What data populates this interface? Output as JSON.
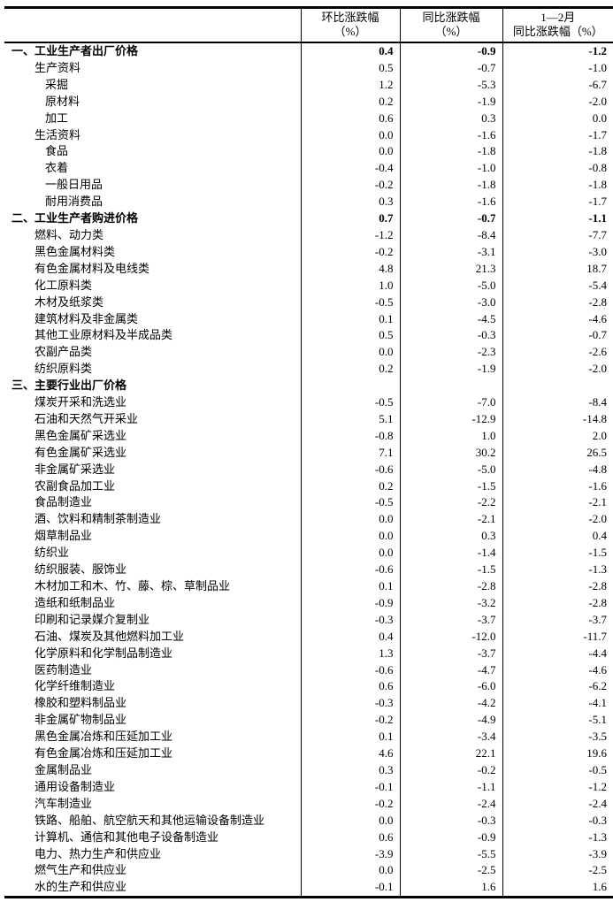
{
  "page": {
    "background_color": "#ffffff",
    "border_color": "#000000"
  },
  "table": {
    "header": {
      "label_col": "",
      "col_mom": {
        "line1": "环比涨跌幅",
        "line2": "（%）"
      },
      "col_yoy": {
        "line1": "同比涨跌幅",
        "line2": "（%）"
      },
      "col_ytd": {
        "line1": "1—2月",
        "line2": "同比涨跌幅（%）"
      }
    },
    "rows": [
      {
        "label": "一、工业生产者出厂价格",
        "indent": 0,
        "bold": true,
        "values": [
          "0.4",
          "-0.9",
          "-1.2"
        ]
      },
      {
        "label": "生产资料",
        "indent": 1,
        "bold": false,
        "values": [
          "0.5",
          "-0.7",
          "-1.0"
        ]
      },
      {
        "label": "采掘",
        "indent": 2,
        "bold": false,
        "values": [
          "1.2",
          "-5.3",
          "-6.7"
        ]
      },
      {
        "label": "原材料",
        "indent": 2,
        "bold": false,
        "values": [
          "0.2",
          "-1.9",
          "-2.0"
        ]
      },
      {
        "label": "加工",
        "indent": 2,
        "bold": false,
        "values": [
          "0.6",
          "0.3",
          "0.0"
        ]
      },
      {
        "label": "生活资料",
        "indent": 1,
        "bold": false,
        "values": [
          "0.0",
          "-1.6",
          "-1.7"
        ]
      },
      {
        "label": "食品",
        "indent": 2,
        "bold": false,
        "values": [
          "0.0",
          "-1.8",
          "-1.8"
        ]
      },
      {
        "label": "衣着",
        "indent": 2,
        "bold": false,
        "values": [
          "-0.4",
          "-1.0",
          "-0.8"
        ]
      },
      {
        "label": "一般日用品",
        "indent": 2,
        "bold": false,
        "values": [
          "-0.2",
          "-1.8",
          "-1.8"
        ]
      },
      {
        "label": "耐用消费品",
        "indent": 2,
        "bold": false,
        "values": [
          "0.3",
          "-1.6",
          "-1.7"
        ]
      },
      {
        "label": "二、工业生产者购进价格",
        "indent": 0,
        "bold": true,
        "values": [
          "0.7",
          "-0.7",
          "-1.1"
        ]
      },
      {
        "label": "燃料、动力类",
        "indent": 1,
        "bold": false,
        "values": [
          "-1.2",
          "-8.4",
          "-7.7"
        ]
      },
      {
        "label": "黑色金属材料类",
        "indent": 1,
        "bold": false,
        "values": [
          "-0.2",
          "-3.1",
          "-3.0"
        ]
      },
      {
        "label": "有色金属材料及电线类",
        "indent": 1,
        "bold": false,
        "values": [
          "4.8",
          "21.3",
          "18.7"
        ]
      },
      {
        "label": "化工原料类",
        "indent": 1,
        "bold": false,
        "values": [
          "1.0",
          "-5.0",
          "-5.4"
        ]
      },
      {
        "label": "木材及纸浆类",
        "indent": 1,
        "bold": false,
        "values": [
          "-0.5",
          "-3.0",
          "-2.8"
        ]
      },
      {
        "label": "建筑材料及非金属类",
        "indent": 1,
        "bold": false,
        "values": [
          "0.1",
          "-4.5",
          "-4.6"
        ]
      },
      {
        "label": "其他工业原材料及半成品类",
        "indent": 1,
        "bold": false,
        "values": [
          "0.5",
          "-0.3",
          "-0.7"
        ]
      },
      {
        "label": "农副产品类",
        "indent": 1,
        "bold": false,
        "values": [
          "0.0",
          "-2.3",
          "-2.6"
        ]
      },
      {
        "label": "纺织原料类",
        "indent": 1,
        "bold": false,
        "values": [
          "0.2",
          "-1.9",
          "-2.0"
        ]
      },
      {
        "label": "三、主要行业出厂价格",
        "indent": 0,
        "bold": true,
        "values": [
          "",
          "",
          ""
        ]
      },
      {
        "label": "煤炭开采和洗选业",
        "indent": 1,
        "bold": false,
        "values": [
          "-0.5",
          "-7.0",
          "-8.4"
        ]
      },
      {
        "label": "石油和天然气开采业",
        "indent": 1,
        "bold": false,
        "values": [
          "5.1",
          "-12.9",
          "-14.8"
        ]
      },
      {
        "label": "黑色金属矿采选业",
        "indent": 1,
        "bold": false,
        "values": [
          "-0.8",
          "1.0",
          "2.0"
        ]
      },
      {
        "label": "有色金属矿采选业",
        "indent": 1,
        "bold": false,
        "values": [
          "7.1",
          "30.2",
          "26.5"
        ]
      },
      {
        "label": "非金属矿采选业",
        "indent": 1,
        "bold": false,
        "values": [
          "-0.6",
          "-5.0",
          "-4.8"
        ]
      },
      {
        "label": "农副食品加工业",
        "indent": 1,
        "bold": false,
        "values": [
          "0.2",
          "-1.5",
          "-1.6"
        ]
      },
      {
        "label": "食品制造业",
        "indent": 1,
        "bold": false,
        "values": [
          "-0.5",
          "-2.2",
          "-2.1"
        ]
      },
      {
        "label": "酒、饮料和精制茶制造业",
        "indent": 1,
        "bold": false,
        "values": [
          "0.0",
          "-2.1",
          "-2.0"
        ]
      },
      {
        "label": "烟草制品业",
        "indent": 1,
        "bold": false,
        "values": [
          "0.0",
          "0.3",
          "0.4"
        ]
      },
      {
        "label": "纺织业",
        "indent": 1,
        "bold": false,
        "values": [
          "0.0",
          "-1.4",
          "-1.5"
        ]
      },
      {
        "label": "纺织服装、服饰业",
        "indent": 1,
        "bold": false,
        "values": [
          "-0.6",
          "-1.5",
          "-1.3"
        ]
      },
      {
        "label": "木材加工和木、竹、藤、棕、草制品业",
        "indent": 1,
        "bold": false,
        "values": [
          "0.1",
          "-2.8",
          "-2.8"
        ]
      },
      {
        "label": "造纸和纸制品业",
        "indent": 1,
        "bold": false,
        "values": [
          "-0.9",
          "-3.2",
          "-2.8"
        ]
      },
      {
        "label": "印刷和记录媒介复制业",
        "indent": 1,
        "bold": false,
        "values": [
          "-0.3",
          "-3.7",
          "-3.7"
        ]
      },
      {
        "label": "石油、煤炭及其他燃料加工业",
        "indent": 1,
        "bold": false,
        "values": [
          "0.4",
          "-12.0",
          "-11.7"
        ]
      },
      {
        "label": "化学原料和化学制品制造业",
        "indent": 1,
        "bold": false,
        "values": [
          "1.3",
          "-3.7",
          "-4.4"
        ]
      },
      {
        "label": "医药制造业",
        "indent": 1,
        "bold": false,
        "values": [
          "-0.6",
          "-4.7",
          "-4.6"
        ]
      },
      {
        "label": "化学纤维制造业",
        "indent": 1,
        "bold": false,
        "values": [
          "0.6",
          "-6.0",
          "-6.2"
        ]
      },
      {
        "label": "橡胶和塑料制品业",
        "indent": 1,
        "bold": false,
        "values": [
          "-0.3",
          "-4.2",
          "-4.1"
        ]
      },
      {
        "label": "非金属矿物制品业",
        "indent": 1,
        "bold": false,
        "values": [
          "-0.2",
          "-4.9",
          "-5.1"
        ]
      },
      {
        "label": "黑色金属冶炼和压延加工业",
        "indent": 1,
        "bold": false,
        "values": [
          "0.1",
          "-3.4",
          "-3.5"
        ]
      },
      {
        "label": "有色金属冶炼和压延加工业",
        "indent": 1,
        "bold": false,
        "values": [
          "4.6",
          "22.1",
          "19.6"
        ]
      },
      {
        "label": "金属制品业",
        "indent": 1,
        "bold": false,
        "values": [
          "0.3",
          "-0.2",
          "-0.5"
        ]
      },
      {
        "label": "通用设备制造业",
        "indent": 1,
        "bold": false,
        "values": [
          "-0.1",
          "-1.1",
          "-1.2"
        ]
      },
      {
        "label": "汽车制造业",
        "indent": 1,
        "bold": false,
        "values": [
          "-0.2",
          "-2.4",
          "-2.4"
        ]
      },
      {
        "label": "铁路、船舶、航空航天和其他运输设备制造业",
        "indent": 1,
        "bold": false,
        "values": [
          "0.0",
          "-0.3",
          "-0.3"
        ]
      },
      {
        "label": "计算机、通信和其他电子设备制造业",
        "indent": 1,
        "bold": false,
        "values": [
          "0.6",
          "-0.9",
          "-1.3"
        ]
      },
      {
        "label": "电力、热力生产和供应业",
        "indent": 1,
        "bold": false,
        "values": [
          "-3.9",
          "-5.5",
          "-3.9"
        ]
      },
      {
        "label": "燃气生产和供应业",
        "indent": 1,
        "bold": false,
        "values": [
          "0.0",
          "-2.5",
          "-2.5"
        ]
      },
      {
        "label": "水的生产和供应业",
        "indent": 1,
        "bold": false,
        "values": [
          "-0.1",
          "1.6",
          "1.6"
        ]
      }
    ]
  }
}
